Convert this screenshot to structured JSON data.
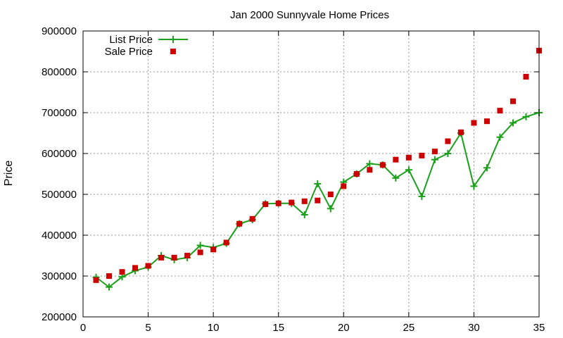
{
  "chart_data": {
    "type": "line",
    "title": "Jan 2000 Sunnyvale Home Prices",
    "xlabel": "",
    "ylabel": "Price",
    "xlim": [
      0,
      35
    ],
    "ylim": [
      200000,
      900000
    ],
    "xticks": [
      0,
      5,
      10,
      15,
      20,
      25,
      30,
      35
    ],
    "yticks": [
      200000,
      300000,
      400000,
      500000,
      600000,
      700000,
      800000,
      900000
    ],
    "grid": true,
    "legend_position": "top-left",
    "series": [
      {
        "name": "List Price",
        "style": "line-plus",
        "color": "#1aa01a",
        "x": [
          1,
          2,
          3,
          4,
          5,
          6,
          7,
          8,
          9,
          10,
          11,
          12,
          13,
          14,
          15,
          16,
          17,
          18,
          19,
          20,
          21,
          22,
          23,
          24,
          25,
          26,
          27,
          28,
          29,
          30,
          31,
          32,
          33,
          34,
          35
        ],
        "values": [
          297000,
          273000,
          298000,
          313000,
          322000,
          350000,
          340000,
          345000,
          375000,
          370000,
          380000,
          428000,
          438000,
          477000,
          478000,
          478000,
          450000,
          526000,
          465000,
          530000,
          550000,
          575000,
          572000,
          540000,
          560000,
          495000,
          585000,
          600000,
          650000,
          520000,
          565000,
          640000,
          675000,
          690000,
          700000
        ]
      },
      {
        "name": "Sale Price",
        "style": "square",
        "color": "#cc0000",
        "x": [
          1,
          2,
          3,
          4,
          5,
          6,
          7,
          8,
          9,
          10,
          11,
          12,
          13,
          14,
          15,
          16,
          17,
          18,
          19,
          20,
          21,
          22,
          23,
          24,
          25,
          26,
          27,
          28,
          29,
          30,
          31,
          32,
          33,
          34,
          35
        ],
        "values": [
          290000,
          300000,
          310000,
          320000,
          325000,
          345000,
          345000,
          350000,
          358000,
          365000,
          382000,
          428000,
          440000,
          476000,
          478000,
          480000,
          483000,
          485000,
          500000,
          520000,
          550000,
          560000,
          572000,
          585000,
          590000,
          595000,
          605000,
          630000,
          652000,
          675000,
          679000,
          705000,
          728000,
          788000,
          852000
        ]
      }
    ]
  }
}
